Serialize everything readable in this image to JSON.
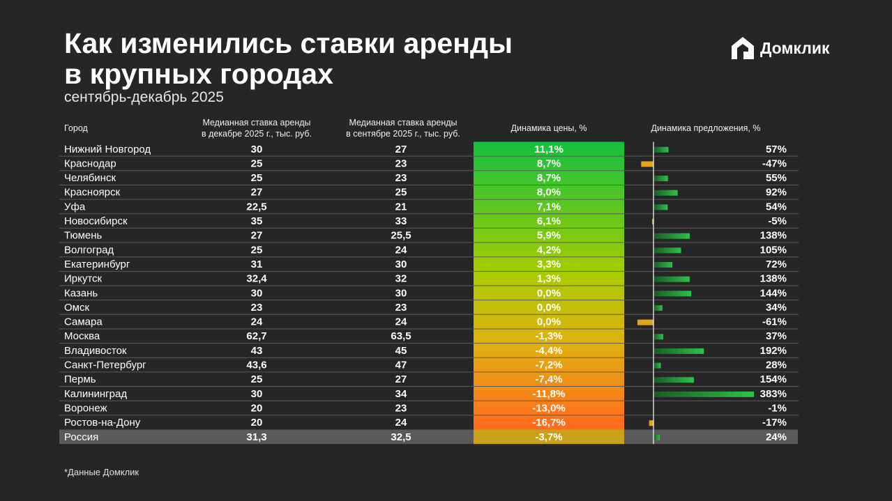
{
  "header": {
    "title_lines": [
      "Как изменились ставки аренды",
      "в крупных городах"
    ],
    "subtitle": "сентябрь-декабрь 2025",
    "logo": "Домклик"
  },
  "table": {
    "columns": {
      "city": "Город",
      "dec": [
        "Медианная ставка аренды",
        "в декабре 2025 г., тыс. руб."
      ],
      "sep": [
        "Медианная ставка аренды",
        "в сентябре 2025 г., тыс. руб."
      ],
      "price_change": "Динамика цены, %",
      "supply_change": "Динамика предложения, %"
    },
    "rows": [
      {
        "city": "Нижний Новгород",
        "dec": "30",
        "sep": "27",
        "price_change": "11,1%",
        "supply_change": {
          "value": 57,
          "label": "57%"
        }
      },
      {
        "city": "Краснодар",
        "dec": "25",
        "sep": "23",
        "price_change": "8,7%",
        "supply_change": {
          "value": -47,
          "label": "-47%"
        }
      },
      {
        "city": "Челябинск",
        "dec": "25",
        "sep": "23",
        "price_change": "8,7%",
        "supply_change": {
          "value": 55,
          "label": "55%"
        }
      },
      {
        "city": "Красноярск",
        "dec": "27",
        "sep": "25",
        "price_change": "8,0%",
        "supply_change": {
          "value": 92,
          "label": "92%"
        }
      },
      {
        "city": "Уфа",
        "dec": "22,5",
        "sep": "21",
        "price_change": "7,1%",
        "supply_change": {
          "value": 54,
          "label": "54%"
        }
      },
      {
        "city": "Новосибирск",
        "dec": "35",
        "sep": "33",
        "price_change": "6,1%",
        "supply_change": {
          "value": -5,
          "label": "-5%"
        }
      },
      {
        "city": "Тюмень",
        "dec": "27",
        "sep": "25,5",
        "price_change": "5,9%",
        "supply_change": {
          "value": 138,
          "label": "138%"
        }
      },
      {
        "city": "Волгоград",
        "dec": "25",
        "sep": "24",
        "price_change": "4,2%",
        "supply_change": {
          "value": 105,
          "label": "105%"
        }
      },
      {
        "city": "Екатеринбург",
        "dec": "31",
        "sep": "30",
        "price_change": "3,3%",
        "supply_change": {
          "value": 72,
          "label": "72%"
        }
      },
      {
        "city": "Иркутск",
        "dec": "32,4",
        "sep": "32",
        "price_change": "1,3%",
        "supply_change": {
          "value": 138,
          "label": "138%"
        }
      },
      {
        "city": "Казань",
        "dec": "30",
        "sep": "30",
        "price_change": "0,0%",
        "supply_change": {
          "value": 144,
          "label": "144%"
        }
      },
      {
        "city": "Омск",
        "dec": "23",
        "sep": "23",
        "price_change": "0,0%",
        "supply_change": {
          "value": 34,
          "label": "34%"
        }
      },
      {
        "city": "Самара",
        "dec": "24",
        "sep": "24",
        "price_change": "0,0%",
        "supply_change": {
          "value": -61,
          "label": "-61%"
        }
      },
      {
        "city": "Москва",
        "dec": "62,7",
        "sep": "63,5",
        "price_change": "-1,3%",
        "supply_change": {
          "value": 37,
          "label": "37%"
        }
      },
      {
        "city": "Владивосток",
        "dec": "43",
        "sep": "45",
        "price_change": "-4,4%",
        "supply_change": {
          "value": 192,
          "label": "192%"
        }
      },
      {
        "city": "Санкт-Петербург",
        "dec": "43,6",
        "sep": "47",
        "price_change": "-7,2%",
        "supply_change": {
          "value": 28,
          "label": "28%"
        }
      },
      {
        "city": "Пермь",
        "dec": "25",
        "sep": "27",
        "price_change": "-7,4%",
        "supply_change": {
          "value": 154,
          "label": "154%"
        }
      },
      {
        "city": "Калининград",
        "dec": "30",
        "sep": "34",
        "price_change": "-11,8%",
        "supply_change": {
          "value": 383,
          "label": "383%"
        }
      },
      {
        "city": "Воронеж",
        "dec": "20",
        "sep": "23",
        "price_change": "-13,0%",
        "supply_change": {
          "value": -1,
          "label": "-1%"
        }
      },
      {
        "city": "Ростов-на-Дону",
        "dec": "20",
        "sep": "24",
        "price_change": "-16,7%",
        "supply_change": {
          "value": -17,
          "label": "-17%"
        }
      },
      {
        "city": "Россия",
        "dec": "31,3",
        "sep": "32,5",
        "price_change": "-3,7%",
        "supply_change": {
          "value": 24,
          "label": "24%"
        }
      }
    ]
  },
  "footnote": "*Данные Домклик"
}
